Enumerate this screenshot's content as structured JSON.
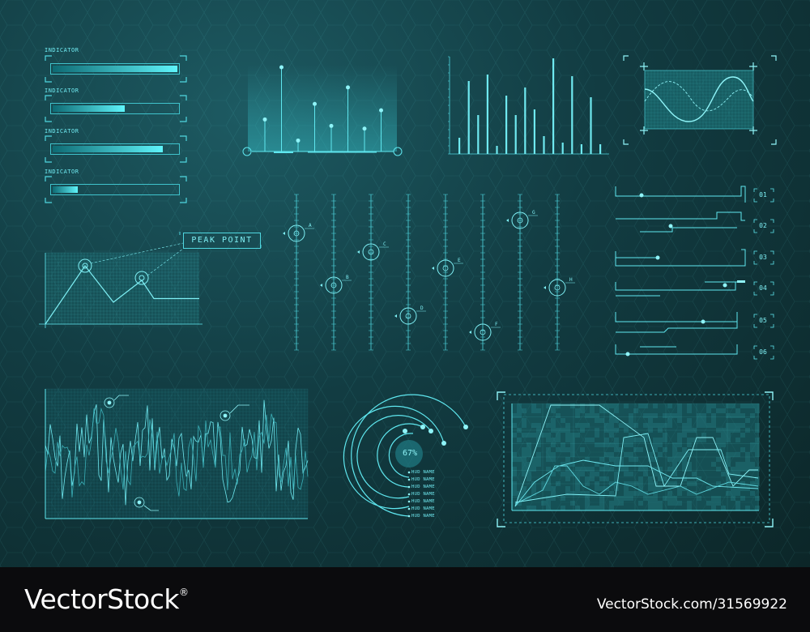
{
  "indicators": [
    {
      "label": "INDICATOR",
      "value": 1.0
    },
    {
      "label": "INDICATOR",
      "value": 0.58
    },
    {
      "label": "INDICATOR",
      "value": 0.88
    },
    {
      "label": "INDICATOR",
      "value": 0.2
    }
  ],
  "peak_label": "PEAK POINT",
  "codes": [
    "01",
    "02",
    "03",
    "04",
    "05",
    "06"
  ],
  "percent": "67%",
  "hud_names": [
    "HUD NAME",
    "HUD NAME",
    "HUD NAME",
    "HUD NAME",
    "HUD NAME",
    "HUD NAME",
    "HUD NAME"
  ],
  "gauge_letters": [
    "A",
    "B",
    "C",
    "D",
    "E",
    "F",
    "G",
    "H"
  ],
  "footer": {
    "brand": "VectorStock",
    "credit": "VectorStock.com/31569922"
  },
  "colors": {
    "accent": "#5fe7ef",
    "background": "#123c42",
    "footer": "#0b0b0d"
  },
  "chart_data": [
    {
      "type": "bar",
      "values": [
        20,
        90,
        48,
        98,
        10,
        72,
        48,
        82,
        55,
        22,
        118,
        14,
        96,
        12,
        70,
        12
      ]
    },
    {
      "type": "bar",
      "values": [
        0.35,
        0.92,
        0.12,
        0.52,
        0.28,
        0.7,
        0.25,
        0.45
      ]
    },
    {
      "type": "line",
      "values": [
        0,
        0.8,
        0.3,
        0.6,
        0.35,
        0.35
      ]
    },
    {
      "type": "line",
      "values": [
        0.2,
        0.7,
        0.1,
        0.9,
        0.3,
        0.95,
        0.15,
        0.8,
        0.4,
        0.85,
        0.05,
        0.75
      ]
    }
  ]
}
